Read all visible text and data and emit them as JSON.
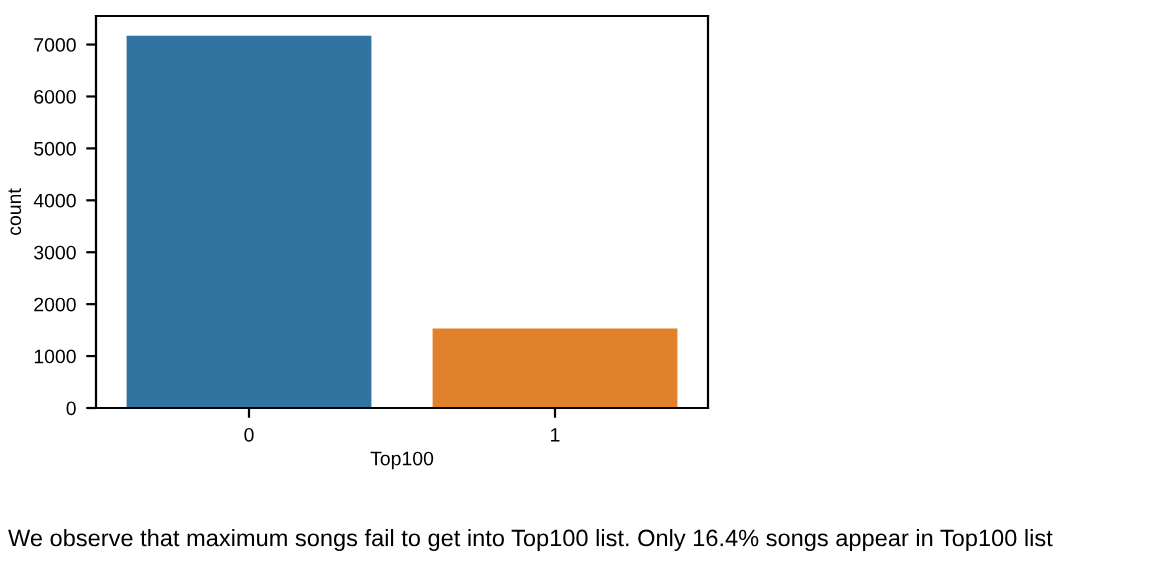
{
  "chart_data": {
    "type": "bar",
    "xlabel": "Top100",
    "ylabel": "count",
    "categories": [
      "0",
      "1"
    ],
    "values": [
      7170,
      1530
    ],
    "colors": [
      "#3274a1",
      "#e1812c"
    ],
    "ylim": [
      0,
      7550
    ],
    "yticks": [
      0,
      1000,
      2000,
      3000,
      4000,
      5000,
      6000,
      7000
    ],
    "grid": false,
    "legend": false,
    "annotations": [
      "We observe that maximum songs fail to get into Top100 list. Only 16.4% songs appear in Top100 list"
    ]
  }
}
